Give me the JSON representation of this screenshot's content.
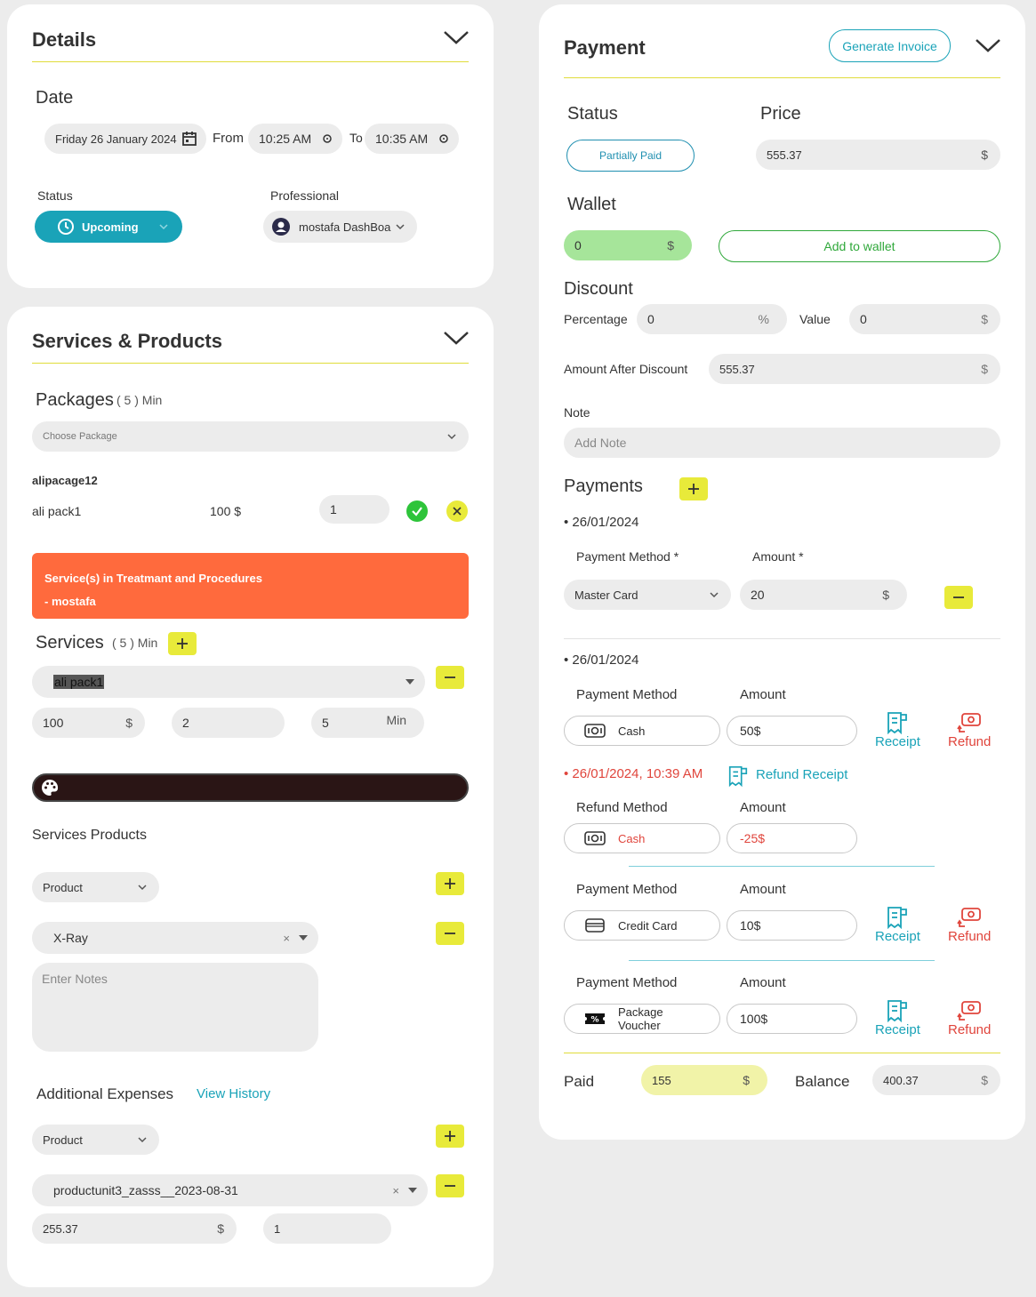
{
  "details": {
    "title": "Details",
    "date_label": "Date",
    "date_value": "Friday 26 January 2024",
    "from_label": "From",
    "from_value": "10:25 AM",
    "to_label": "To",
    "to_value": "10:35 AM",
    "status_label": "Status",
    "status_value": "Upcoming",
    "professional_label": "Professional",
    "professional_value": "mostafa DashBoar"
  },
  "services_products": {
    "title": "Services & Products",
    "packages_label": "Packages",
    "packages_count": "( 5 ) Min",
    "package_placeholder": "Choose Package",
    "package_name": "alipacage12",
    "package_item": "ali pack1",
    "package_price": "100 $",
    "package_qty": "1",
    "alert_line1": "Service(s) in Treatmant and Procedures",
    "alert_line2": "- mostafa",
    "services_label": "Services",
    "services_count": "( 5 ) Min",
    "service_selected": "ali pack1",
    "service_price": "100",
    "service_price_suffix": "$",
    "service_qty": "2",
    "service_duration": "5",
    "service_duration_suffix": "Min",
    "services_products_label": "Services Products",
    "product_select": "Product",
    "product_selected": "X-Ray",
    "notes_placeholder": "Enter Notes",
    "additional_label": "Additional Expenses",
    "view_history": "View History",
    "add_product_select": "Product",
    "add_product_selected": "productunit3_zasss__2023-08-31",
    "add_price": "255.37",
    "add_price_suffix": "$",
    "add_qty": "1"
  },
  "payment": {
    "title": "Payment",
    "generate_invoice": "Generate Invoice",
    "status_label": "Status",
    "status_value": "Partially Paid",
    "price_label": "Price",
    "price_value": "555.37",
    "currency": "$",
    "wallet_label": "Wallet",
    "wallet_value": "0",
    "add_to_wallet": "Add to wallet",
    "discount_label": "Discount",
    "percentage_label": "Percentage",
    "percentage_value": "0",
    "percent_suffix": "%",
    "value_label": "Value",
    "value_value": "0",
    "amount_after_label": "Amount After Discount",
    "amount_after_value": "555.37",
    "note_label": "Note",
    "note_placeholder": "Add Note",
    "payments_label": "Payments",
    "new_date": "• 26/01/2024",
    "new_method_label": "Payment Method *",
    "new_amount_label": "Amount *",
    "new_method_value": "Master Card",
    "new_amount_value": "20",
    "history_date": "• 26/01/2024",
    "entries": [
      {
        "method_label": "Payment Method",
        "amount_label": "Amount",
        "method": "Cash",
        "amount": "50"
      },
      {
        "method_label": "Payment Method",
        "amount_label": "Amount",
        "method": "Credit Card",
        "amount": "10"
      },
      {
        "method_label": "Payment Method",
        "amount_label": "Amount",
        "method": "Package Voucher",
        "amount": "100"
      }
    ],
    "receipt_label": "Receipt",
    "refund_label": "Refund",
    "refund_date": "• 26/01/2024, 10:39 AM",
    "refund_receipt": "Refund Receipt",
    "refund_method_label": "Refund Method",
    "refund_amount_label": "Amount",
    "refund_method": "Cash",
    "refund_amount": "-25",
    "paid_label": "Paid",
    "paid_value": "155",
    "balance_label": "Balance",
    "balance_value": "400.37"
  },
  "colors": {
    "accent_yellow": "#e8ea3a",
    "teal": "#1aa3b8",
    "orange": "#ff6a3d",
    "green": "#2ec43a",
    "red": "#e0453c"
  }
}
